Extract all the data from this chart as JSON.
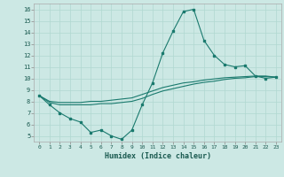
{
  "xlabel": "Humidex (Indice chaleur)",
  "xlim": [
    -0.5,
    23.5
  ],
  "ylim": [
    4.5,
    16.5
  ],
  "xticks": [
    0,
    1,
    2,
    3,
    4,
    5,
    6,
    7,
    8,
    9,
    10,
    11,
    12,
    13,
    14,
    15,
    16,
    17,
    18,
    19,
    20,
    21,
    22,
    23
  ],
  "yticks": [
    5,
    6,
    7,
    8,
    9,
    10,
    11,
    12,
    13,
    14,
    15,
    16
  ],
  "bg_color": "#cce8e4",
  "grid_color": "#b0d8d0",
  "line_color": "#1a7a6e",
  "line1_x": [
    0,
    1,
    2,
    3,
    4,
    5,
    6,
    7,
    8,
    9,
    10,
    11,
    12,
    13,
    14,
    15,
    16,
    17,
    18,
    19,
    20,
    21,
    22,
    23
  ],
  "line1_y": [
    8.5,
    7.7,
    7.0,
    6.5,
    6.2,
    5.3,
    5.5,
    5.0,
    4.7,
    5.5,
    7.7,
    9.6,
    12.2,
    14.1,
    15.8,
    16.0,
    13.3,
    12.0,
    11.2,
    11.0,
    11.1,
    10.2,
    10.0,
    10.1
  ],
  "line2_x": [
    0,
    1,
    2,
    3,
    4,
    5,
    6,
    7,
    8,
    9,
    10,
    11,
    12,
    13,
    14,
    15,
    16,
    17,
    18,
    19,
    20,
    21,
    22,
    23
  ],
  "line2_y": [
    8.5,
    8.0,
    7.9,
    7.9,
    7.9,
    8.0,
    8.0,
    8.1,
    8.2,
    8.3,
    8.6,
    8.9,
    9.2,
    9.4,
    9.6,
    9.7,
    9.85,
    9.95,
    10.05,
    10.1,
    10.15,
    10.2,
    10.2,
    10.1
  ],
  "line3_x": [
    0,
    1,
    2,
    3,
    4,
    5,
    6,
    7,
    8,
    9,
    10,
    11,
    12,
    13,
    14,
    15,
    16,
    17,
    18,
    19,
    20,
    21,
    22,
    23
  ],
  "line3_y": [
    8.5,
    7.9,
    7.7,
    7.7,
    7.7,
    7.7,
    7.8,
    7.8,
    7.9,
    8.0,
    8.25,
    8.6,
    8.9,
    9.1,
    9.3,
    9.5,
    9.65,
    9.75,
    9.9,
    10.0,
    10.05,
    10.15,
    10.15,
    10.1
  ],
  "figsize": [
    3.2,
    2.0
  ],
  "dpi": 100
}
